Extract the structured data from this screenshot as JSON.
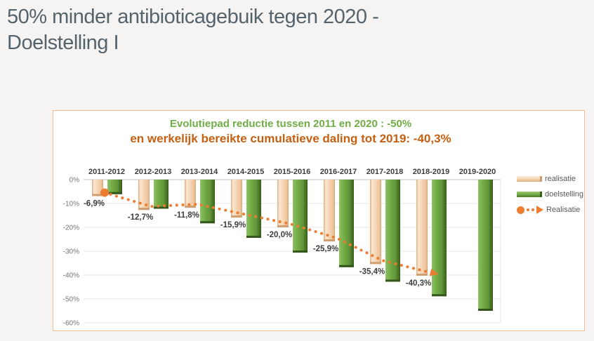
{
  "page": {
    "title": "50% minder antibioticagebuik tegen 2020 - Doelstelling I",
    "background_color": "#f5f4f3",
    "title_color": "#55636d"
  },
  "chart": {
    "title_line1": "Evolutiepad reductie tussen 2011 en 2020 : -50%",
    "title_line2": "en werkelijk bereikte cumulatieve daling tot 2019: -40,3%",
    "title_line1_color": "#70ad47",
    "title_line2_color": "#c55f11",
    "border_color": "#f2bd93",
    "background_color": "#ffffff"
  },
  "chart_data": {
    "type": "bar",
    "title": "Evolutiepad reductie tussen 2011 en 2020 : -50% — en werkelijk bereikte cumulatieve daling tot 2019: -40,3%",
    "categories": [
      "2011-2012",
      "2012-2013",
      "2013-2014",
      "2014-2015",
      "2015-2016",
      "2016-2017",
      "2017-2018",
      "2018-2019",
      "2019-2020"
    ],
    "series": [
      {
        "name": "realisatie",
        "type": "bar",
        "color": "#f2d2ae",
        "values": [
          -6.9,
          -12.7,
          -11.8,
          -15.9,
          -20.0,
          -25.9,
          -35.4,
          -40.3,
          null
        ],
        "data_labels": [
          "-6,9%",
          "-12,7%",
          "-11,8%",
          "-15,9%",
          "-20,0%",
          "-25,9%",
          "-35,4%",
          "-40,3%",
          ""
        ]
      },
      {
        "name": "doelstelling",
        "type": "bar",
        "color": "#6fa843",
        "values": [
          -6.1,
          -12.2,
          -18.3,
          -24.4,
          -30.6,
          -36.7,
          -42.8,
          -48.9,
          -55.0
        ]
      },
      {
        "name": "Realisatie",
        "type": "line",
        "style": "dotted",
        "color": "#ed7d31",
        "values": [
          -6.9,
          -12.7,
          -11.8,
          -15.9,
          -20.0,
          -25.9,
          -35.4,
          -40.3,
          null
        ]
      }
    ],
    "yticks": [
      "0%",
      "-10%",
      "-20%",
      "-30%",
      "-40%",
      "-50%",
      "-60%"
    ],
    "ylim": [
      -60,
      0
    ],
    "grid": true,
    "legend_position": "right",
    "legend": [
      {
        "label": "realisatie",
        "swatch": "bar-tan"
      },
      {
        "label": "doelstelling",
        "swatch": "bar-green"
      },
      {
        "label": "Realisatie",
        "swatch": "dotted-arrow"
      }
    ]
  }
}
